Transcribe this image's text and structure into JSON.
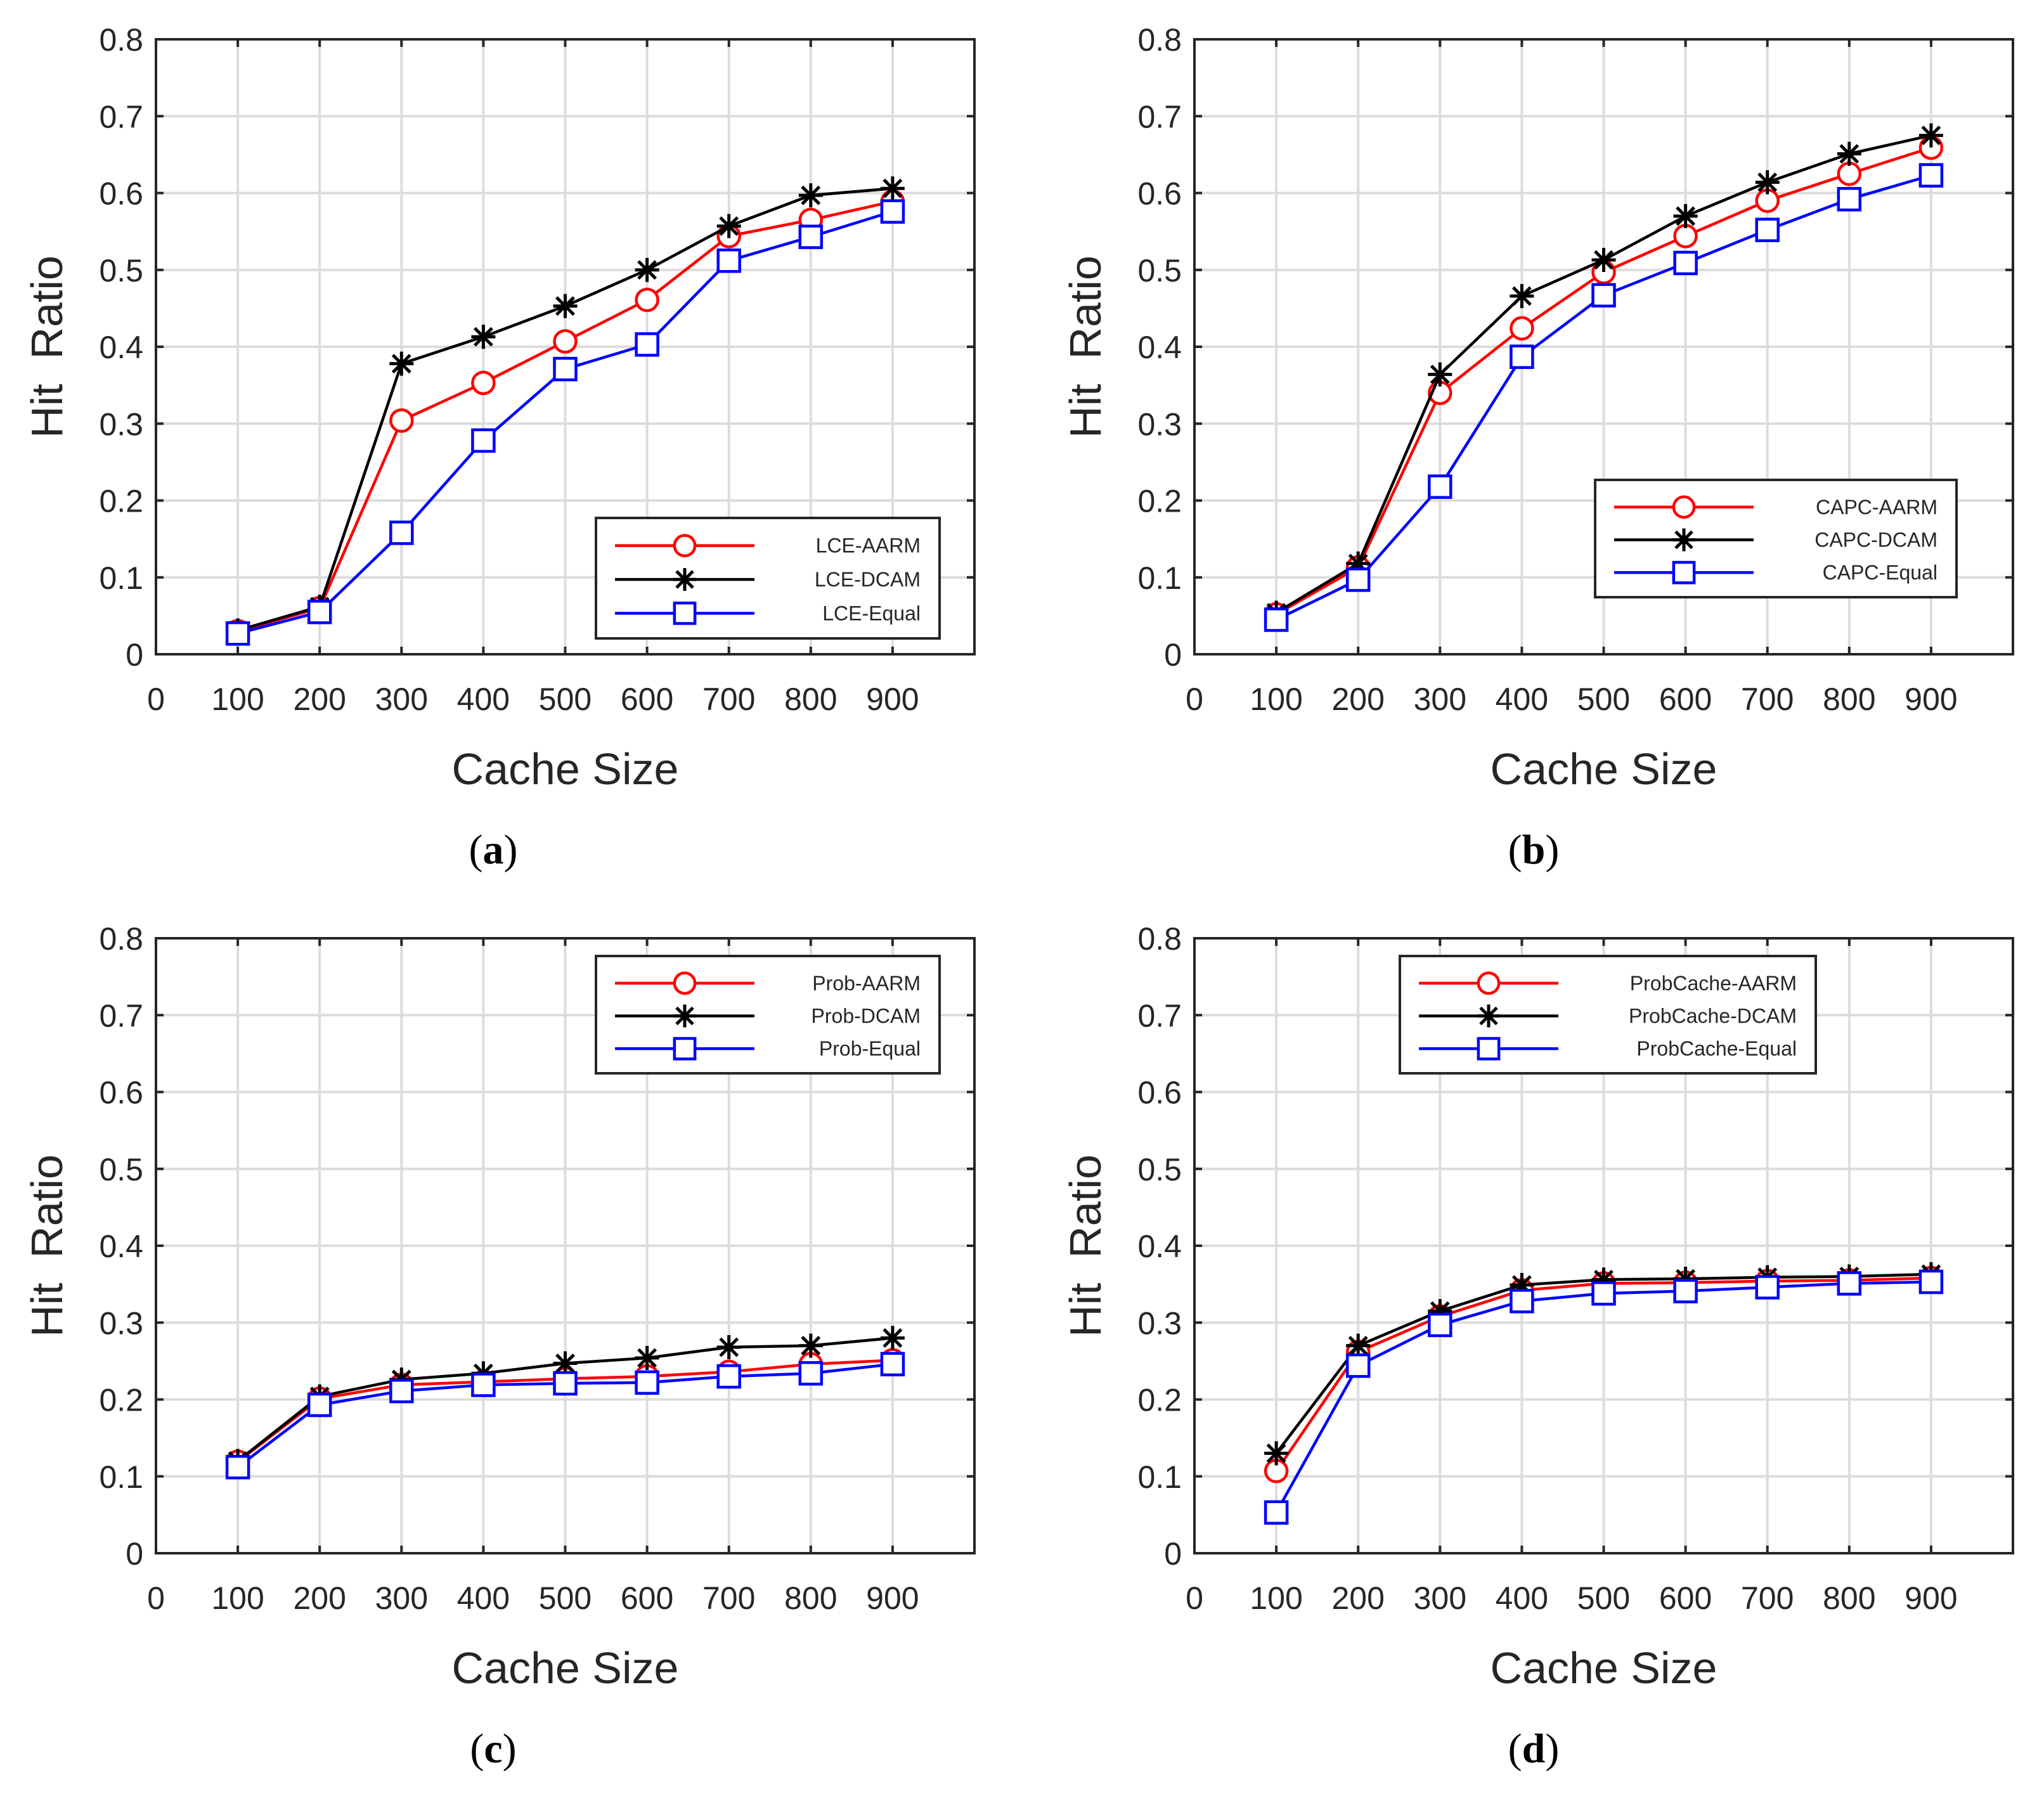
{
  "colors": {
    "AARM": "#ff0000",
    "DCAM": "#000000",
    "Equal": "#0000ff"
  },
  "chart_data": [
    {
      "type": "line",
      "panel": "a",
      "xlabel": "Cache Size",
      "ylabel": "Hit  Ratio",
      "xlim": [
        0,
        1000
      ],
      "ylim": [
        0,
        0.8
      ],
      "xticks": [
        "0",
        "100",
        "200",
        "300",
        "400",
        "500",
        "600",
        "700",
        "800",
        "900"
      ],
      "yticks": [
        "0",
        "0.1",
        "0.2",
        "0.3",
        "0.4",
        "0.5",
        "0.6",
        "0.7",
        "0.8"
      ],
      "grid": true,
      "legend_position": "bottom-right",
      "x": [
        100,
        200,
        300,
        400,
        500,
        600,
        700,
        800,
        900
      ],
      "series": [
        {
          "name": "LCE-AARM",
          "key": "AARM",
          "marker": "circle",
          "values": [
            0.03,
            0.06,
            0.304,
            0.353,
            0.407,
            0.461,
            0.544,
            0.565,
            0.589
          ]
        },
        {
          "name": "LCE-DCAM",
          "key": "DCAM",
          "marker": "star",
          "values": [
            0.031,
            0.062,
            0.378,
            0.413,
            0.453,
            0.5,
            0.557,
            0.597,
            0.606
          ]
        },
        {
          "name": "LCE-Equal",
          "key": "Equal",
          "marker": "square",
          "values": [
            0.027,
            0.055,
            0.158,
            0.278,
            0.371,
            0.403,
            0.512,
            0.543,
            0.576
          ]
        }
      ]
    },
    {
      "type": "line",
      "panel": "b",
      "xlabel": "Cache Size",
      "ylabel": "Hit  Ratio",
      "xlim": [
        0,
        1000
      ],
      "ylim": [
        0,
        0.8
      ],
      "xticks": [
        "0",
        "100",
        "200",
        "300",
        "400",
        "500",
        "600",
        "700",
        "800",
        "900"
      ],
      "yticks": [
        "0",
        "0.1",
        "0.2",
        "0.3",
        "0.4",
        "0.5",
        "0.6",
        "0.7",
        "0.8"
      ],
      "grid": true,
      "legend_position": "lower-right",
      "x": [
        100,
        200,
        300,
        400,
        500,
        600,
        700,
        800,
        900
      ],
      "series": [
        {
          "name": "CAPC-AARM",
          "key": "AARM",
          "marker": "circle",
          "values": [
            0.052,
            0.113,
            0.34,
            0.424,
            0.497,
            0.544,
            0.59,
            0.625,
            0.659
          ]
        },
        {
          "name": "CAPC-DCAM",
          "key": "DCAM",
          "marker": "star",
          "values": [
            0.054,
            0.118,
            0.364,
            0.466,
            0.513,
            0.57,
            0.614,
            0.651,
            0.675
          ]
        },
        {
          "name": "CAPC-Equal",
          "key": "Equal",
          "marker": "square",
          "values": [
            0.045,
            0.097,
            0.218,
            0.387,
            0.467,
            0.509,
            0.552,
            0.592,
            0.623
          ]
        }
      ]
    },
    {
      "type": "line",
      "panel": "c",
      "xlabel": "Cache Size",
      "ylabel": "Hit  Ratio",
      "xlim": [
        0,
        1000
      ],
      "ylim": [
        0,
        0.8
      ],
      "xticks": [
        "0",
        "100",
        "200",
        "300",
        "400",
        "500",
        "600",
        "700",
        "800",
        "900"
      ],
      "yticks": [
        "0",
        "0.1",
        "0.2",
        "0.3",
        "0.4",
        "0.5",
        "0.6",
        "0.7",
        "0.8"
      ],
      "grid": true,
      "legend_position": "top-right",
      "x": [
        100,
        200,
        300,
        400,
        500,
        600,
        700,
        800,
        900
      ],
      "series": [
        {
          "name": "Prob-AARM",
          "key": "AARM",
          "marker": "circle",
          "values": [
            0.119,
            0.201,
            0.219,
            0.223,
            0.227,
            0.23,
            0.236,
            0.246,
            0.251
          ]
        },
        {
          "name": "Prob-DCAM",
          "key": "DCAM",
          "marker": "star",
          "values": [
            0.12,
            0.204,
            0.226,
            0.234,
            0.247,
            0.254,
            0.268,
            0.27,
            0.28
          ]
        },
        {
          "name": "Prob-Equal",
          "key": "Equal",
          "marker": "square",
          "values": [
            0.112,
            0.193,
            0.211,
            0.219,
            0.221,
            0.222,
            0.23,
            0.234,
            0.246
          ]
        }
      ]
    },
    {
      "type": "line",
      "panel": "d",
      "xlabel": "Cache Size",
      "ylabel": "Hit  Ratio",
      "xlim": [
        0,
        1000
      ],
      "ylim": [
        0,
        0.8
      ],
      "xticks": [
        "0",
        "100",
        "200",
        "300",
        "400",
        "500",
        "600",
        "700",
        "800",
        "900"
      ],
      "yticks": [
        "0",
        "0.1",
        "0.2",
        "0.3",
        "0.4",
        "0.5",
        "0.6",
        "0.7",
        "0.8"
      ],
      "grid": true,
      "legend_position": "top-center",
      "x": [
        100,
        200,
        300,
        400,
        500,
        600,
        700,
        800,
        900
      ],
      "series": [
        {
          "name": "ProbCache-AARM",
          "key": "AARM",
          "marker": "circle",
          "values": [
            0.107,
            0.262,
            0.308,
            0.342,
            0.351,
            0.352,
            0.354,
            0.355,
            0.358
          ]
        },
        {
          "name": "ProbCache-DCAM",
          "key": "DCAM",
          "marker": "star",
          "values": [
            0.13,
            0.27,
            0.315,
            0.349,
            0.356,
            0.357,
            0.359,
            0.36,
            0.363
          ]
        },
        {
          "name": "ProbCache-Equal",
          "key": "Equal",
          "marker": "square",
          "values": [
            0.053,
            0.244,
            0.297,
            0.328,
            0.338,
            0.341,
            0.346,
            0.351,
            0.353
          ]
        }
      ]
    }
  ],
  "captions": [
    {
      "open": "(",
      "letter": "a",
      "close": ")"
    },
    {
      "open": "(",
      "letter": "b",
      "close": ")"
    },
    {
      "open": "(",
      "letter": "c",
      "close": ")"
    },
    {
      "open": "(",
      "letter": "d",
      "close": ")"
    }
  ]
}
